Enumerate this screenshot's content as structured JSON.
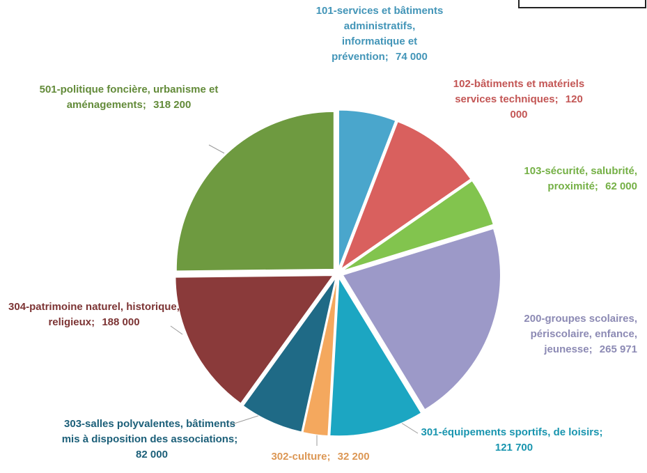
{
  "chart_data": {
    "type": "pie",
    "categories": [
      "101-services et bâtiments administratifs, informatique et prévention;",
      "102-bâtiments et matériels services techniques;",
      "103-sécurité, salubrité, proximité;",
      "200-groupes scolaires, périscolaire, enfance, jeunesse;",
      "301-équipements sportifs, de loisirs;",
      "302-culture;",
      "303-salles polyvalentes, bâtiments mis à disposition des associations;",
      "304-patrimoine naturel, historique, religieux;",
      "501-politique foncière, urbanisme et aménagements;"
    ],
    "values": [
      74000,
      120000,
      62000,
      265971,
      121700,
      32200,
      82000,
      188000,
      318200
    ],
    "value_labels": [
      "74 000",
      "120 000",
      "62 000",
      "265 971",
      "121 700",
      "32 200",
      "82 000",
      "188 000",
      "318 200"
    ],
    "colors": [
      "#4aa6cc",
      "#d9605e",
      "#82c44e",
      "#9c99c8",
      "#1ca6c2",
      "#f4a85e",
      "#1f6a86",
      "#8a3a3a",
      "#6e9a40"
    ]
  }
}
